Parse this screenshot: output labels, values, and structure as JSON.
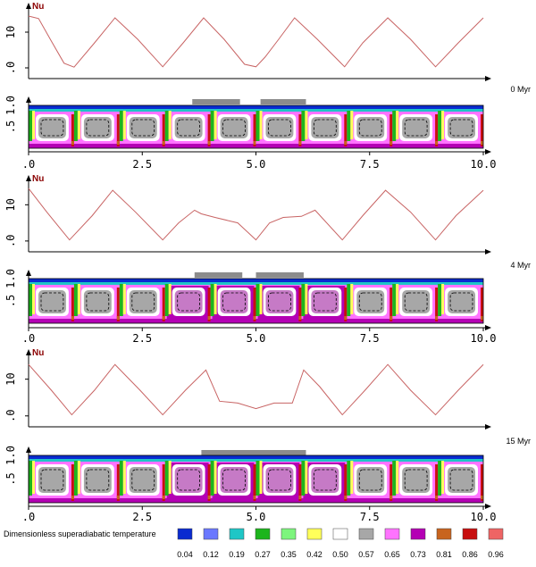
{
  "chart_data": {
    "type": "line",
    "x_ticks": [
      ".0",
      "2.5",
      "5.0",
      "7.5",
      "10.0"
    ],
    "xlim": [
      0,
      10
    ],
    "panels": [
      {
        "time_label": "0 Myr",
        "nu_label": "Nu",
        "nu_ticks": [
          ".0",
          "10"
        ],
        "nu_ylim": [
          -2,
          16
        ],
        "nu_series": {
          "x": [
            0,
            0.22,
            0.5,
            0.78,
            1.0,
            1.45,
            1.9,
            2.4,
            2.95,
            3.4,
            3.85,
            4.3,
            4.75,
            5.0,
            5.2,
            5.5,
            5.85,
            6.35,
            6.95,
            7.35,
            7.9,
            8.4,
            8.95,
            9.45,
            10.0
          ],
          "y": [
            14.5,
            13.8,
            7.5,
            1.3,
            0.2,
            7.0,
            14.0,
            8.0,
            0.3,
            7.0,
            14.0,
            8.0,
            1.0,
            0.3,
            3.0,
            8.0,
            14.0,
            8.0,
            0.3,
            7.0,
            14.0,
            8.0,
            0.3,
            7.0,
            14.0
          ]
        },
        "field_ticks": [
          ".5",
          "1.0"
        ],
        "plates": [
          [
            3.6,
            4.65
          ],
          [
            5.1,
            6.1
          ]
        ],
        "cell_count": 10,
        "cell_anomaly": []
      },
      {
        "time_label": "4 Myr",
        "nu_label": "Nu",
        "nu_ticks": [
          ".0",
          "10"
        ],
        "nu_ylim": [
          -2,
          16
        ],
        "nu_series": {
          "x": [
            0,
            0.4,
            0.9,
            1.4,
            1.85,
            2.35,
            2.95,
            3.3,
            3.65,
            3.8,
            4.1,
            4.6,
            5.0,
            5.3,
            5.6,
            6.0,
            6.3,
            6.9,
            7.35,
            7.85,
            8.4,
            8.95,
            9.4,
            10.0
          ],
          "y": [
            14.5,
            8.0,
            0.3,
            7.0,
            14.0,
            8.0,
            0.3,
            5.0,
            8.5,
            7.5,
            6.5,
            5.0,
            0.3,
            5.0,
            6.5,
            6.8,
            8.5,
            0.3,
            7.0,
            14.0,
            8.0,
            0.3,
            7.0,
            14.0
          ]
        },
        "field_ticks": [
          ".5",
          "1.0"
        ],
        "plates": [
          [
            3.65,
            4.7
          ],
          [
            5.0,
            6.05
          ]
        ],
        "cell_count": 10,
        "cell_anomaly": [
          3,
          4,
          5,
          6
        ]
      },
      {
        "time_label": "15 Myr",
        "nu_label": "Nu",
        "nu_ticks": [
          ".0",
          "10"
        ],
        "nu_ylim": [
          -2,
          16
        ],
        "nu_series": {
          "x": [
            0,
            0.5,
            0.95,
            1.45,
            1.9,
            2.45,
            2.95,
            3.45,
            3.9,
            4.2,
            4.6,
            5.0,
            5.4,
            5.8,
            6.05,
            6.4,
            6.9,
            7.4,
            7.9,
            8.4,
            8.95,
            9.45,
            10.0
          ],
          "y": [
            14.0,
            7.0,
            0.3,
            7.0,
            14.0,
            7.0,
            0.3,
            7.0,
            12.5,
            4.0,
            3.5,
            2.0,
            3.5,
            3.5,
            12.5,
            8.0,
            0.3,
            7.0,
            14.0,
            7.0,
            0.3,
            7.0,
            14.0
          ]
        },
        "field_ticks": [
          ".5",
          "1.0"
        ],
        "plates": [
          [
            3.8,
            6.1
          ]
        ],
        "cell_count": 10,
        "cell_anomaly": [
          3,
          4,
          5,
          6
        ]
      }
    ]
  },
  "legend": {
    "title": "Dimensionless superadiabatic temperature",
    "items": [
      {
        "value": "0.04",
        "color": "#0a2bd0"
      },
      {
        "value": "0.12",
        "color": "#6a78ff"
      },
      {
        "value": "0.19",
        "color": "#1ec6c6"
      },
      {
        "value": "0.27",
        "color": "#1db51d"
      },
      {
        "value": "0.35",
        "color": "#7df57d"
      },
      {
        "value": "0.42",
        "color": "#ffff5a"
      },
      {
        "value": "0.50",
        "color": "#ffffff"
      },
      {
        "value": "0.57",
        "color": "#a7a7a7"
      },
      {
        "value": "0.65",
        "color": "#ff73ff"
      },
      {
        "value": "0.73",
        "color": "#b400b4"
      },
      {
        "value": "0.81",
        "color": "#c8641e"
      },
      {
        "value": "0.86",
        "color": "#c80f0f"
      },
      {
        "value": "0.96",
        "color": "#ee6464"
      }
    ]
  },
  "colors": {
    "nu_line": "#c86464",
    "plate": "#8c8c8c"
  }
}
